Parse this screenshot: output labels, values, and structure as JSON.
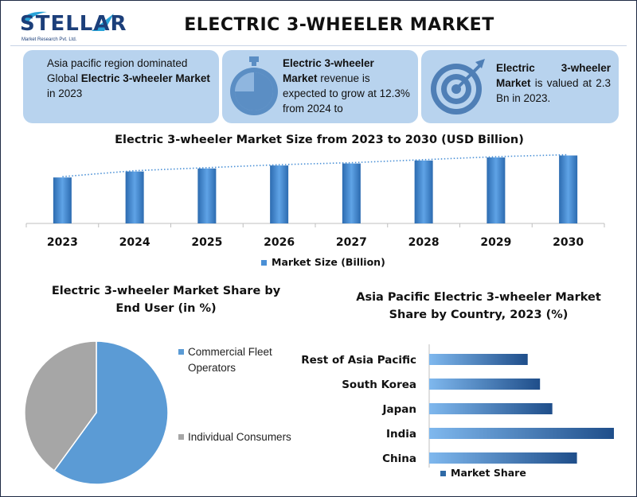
{
  "header": {
    "logo_text": "STELLAR",
    "logo_sub": "Market Research Pvt. Ltd.",
    "title": "ELECTRIC 3-WHEELER MARKET"
  },
  "cards": {
    "card1": {
      "pre": "Asia pacific region dominated Global ",
      "bold": "Electric 3-wheeler Market",
      "post": " in 2023"
    },
    "card2": {
      "bold": "Electric 3-wheeler Market",
      "post": " revenue is expected to grow at 12.3% from 2024 to",
      "icon": "stopwatch-icon"
    },
    "card3": {
      "bold": "Electric 3-wheeler Market",
      "post": " is valued at 2.3 Bn in 2023.",
      "icon": "target-icon"
    }
  },
  "colors": {
    "card_bg": "#b8d3ee",
    "bar_blue": "#4a90d6",
    "bar_dark": "#1f4e8a",
    "pie_gray": "#a6a6a6",
    "pie_blue": "#5b9bd5"
  },
  "chart_data": [
    {
      "type": "bar",
      "title": "Electric 3-wheeler Market Size from 2023 to 2030 (USD Billion)",
      "categories": [
        "2023",
        "2024",
        "2025",
        "2026",
        "2027",
        "2028",
        "2029",
        "2030"
      ],
      "series": [
        {
          "name": "Market Size (Billion)",
          "values": [
            2.3,
            2.6,
            2.75,
            2.9,
            3.0,
            3.15,
            3.3,
            3.4
          ]
        }
      ],
      "trendline": "dotted",
      "legend": "bottom"
    },
    {
      "type": "pie",
      "title": "Electric 3-wheeler Market Share by End User (in %)",
      "labels": [
        "Commercial Fleet Operators",
        "Individual Consumers"
      ],
      "values": [
        60,
        40
      ],
      "legend": "right"
    },
    {
      "type": "bar",
      "orientation": "horizontal",
      "title": "Asia Pacific Electric 3-wheeler  Market Share by Country, 2023 (%)",
      "categories": [
        "Rest of Asia Pacific",
        "South Korea",
        "Japan",
        "India",
        "China"
      ],
      "series": [
        {
          "name": "Market Share",
          "values": [
            40,
            45,
            50,
            75,
            60
          ]
        }
      ],
      "legend": "bottom"
    }
  ]
}
